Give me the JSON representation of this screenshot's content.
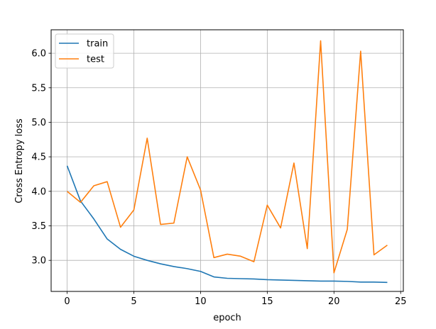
{
  "chart_data": {
    "type": "line",
    "xlabel": "epoch",
    "ylabel": "Cross Entropy loss",
    "x": [
      0,
      1,
      2,
      3,
      4,
      5,
      6,
      7,
      8,
      9,
      10,
      11,
      12,
      13,
      14,
      15,
      16,
      17,
      18,
      19,
      20,
      21,
      22,
      23,
      24
    ],
    "xlim": [
      -1.2,
      25.2
    ],
    "ylim": [
      2.55,
      6.34
    ],
    "xticks": [
      0,
      5,
      10,
      15,
      20,
      25
    ],
    "yticks": [
      3.0,
      3.5,
      4.0,
      4.5,
      5.0,
      5.5,
      6.0
    ],
    "grid": true,
    "legend_position": "upper-left",
    "series": [
      {
        "name": "train",
        "color": "#1f77b4",
        "values": [
          4.37,
          3.86,
          3.6,
          3.31,
          3.16,
          3.06,
          3.0,
          2.95,
          2.91,
          2.88,
          2.84,
          2.76,
          2.74,
          2.735,
          2.73,
          2.72,
          2.715,
          2.71,
          2.705,
          2.7,
          2.7,
          2.695,
          2.685,
          2.685,
          2.68
        ]
      },
      {
        "name": "test",
        "color": "#ff7f0e",
        "values": [
          4.0,
          3.84,
          4.08,
          4.14,
          3.48,
          3.73,
          4.77,
          3.52,
          3.54,
          4.5,
          4.02,
          3.04,
          3.09,
          3.06,
          2.98,
          3.8,
          3.47,
          4.41,
          3.17,
          6.18,
          2.82,
          3.45,
          6.03,
          3.08,
          3.22
        ]
      }
    ]
  }
}
